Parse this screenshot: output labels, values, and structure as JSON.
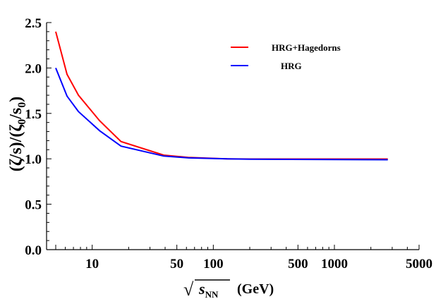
{
  "chart_data": {
    "type": "line",
    "title": "",
    "xscale": "log",
    "xlim": [
      4.2,
      5000
    ],
    "ylim": [
      0,
      2.5
    ],
    "xlabel": {
      "radical": "√",
      "var": "s",
      "sub": "NN",
      "unit": "(GeV)"
    },
    "ylabel": {
      "text": "(ζ/s)/(ζ",
      "sub": "0",
      "mid": "/s",
      "sub2": "0",
      "end": ")"
    },
    "xticks": [
      {
        "value": 10,
        "label": "10"
      },
      {
        "value": 50,
        "label": "50"
      },
      {
        "value": 100,
        "label": "100"
      },
      {
        "value": 500,
        "label": "500"
      },
      {
        "value": 1000,
        "label": "1000"
      },
      {
        "value": 5000,
        "label": "5000"
      }
    ],
    "yticks": [
      {
        "value": 0,
        "label": "0.0"
      },
      {
        "value": 0.5,
        "label": "0.5"
      },
      {
        "value": 1.0,
        "label": "1.0"
      },
      {
        "value": 1.5,
        "label": "1.5"
      },
      {
        "value": 2.0,
        "label": "2.0"
      },
      {
        "value": 2.5,
        "label": "2.5"
      }
    ],
    "series": [
      {
        "name": "HRG+Hagedorns",
        "color": "#ff0000",
        "points": [
          [
            5.0,
            2.4
          ],
          [
            6.2,
            1.93
          ],
          [
            7.7,
            1.7
          ],
          [
            11.5,
            1.42
          ],
          [
            17.3,
            1.19
          ],
          [
            39,
            1.04
          ],
          [
            62.4,
            1.015
          ],
          [
            130,
            1.0
          ],
          [
            200,
            0.998
          ],
          [
            2760,
            0.998
          ]
        ]
      },
      {
        "name": "HRG",
        "color": "#0000ff",
        "points": [
          [
            5.0,
            2.0
          ],
          [
            6.2,
            1.69
          ],
          [
            7.7,
            1.52
          ],
          [
            11.5,
            1.31
          ],
          [
            17.3,
            1.14
          ],
          [
            39,
            1.03
          ],
          [
            62.4,
            1.01
          ],
          [
            130,
            1.0
          ],
          [
            200,
            0.995
          ],
          [
            2760,
            0.99
          ]
        ]
      }
    ],
    "legend": {
      "position": "top-right"
    }
  }
}
